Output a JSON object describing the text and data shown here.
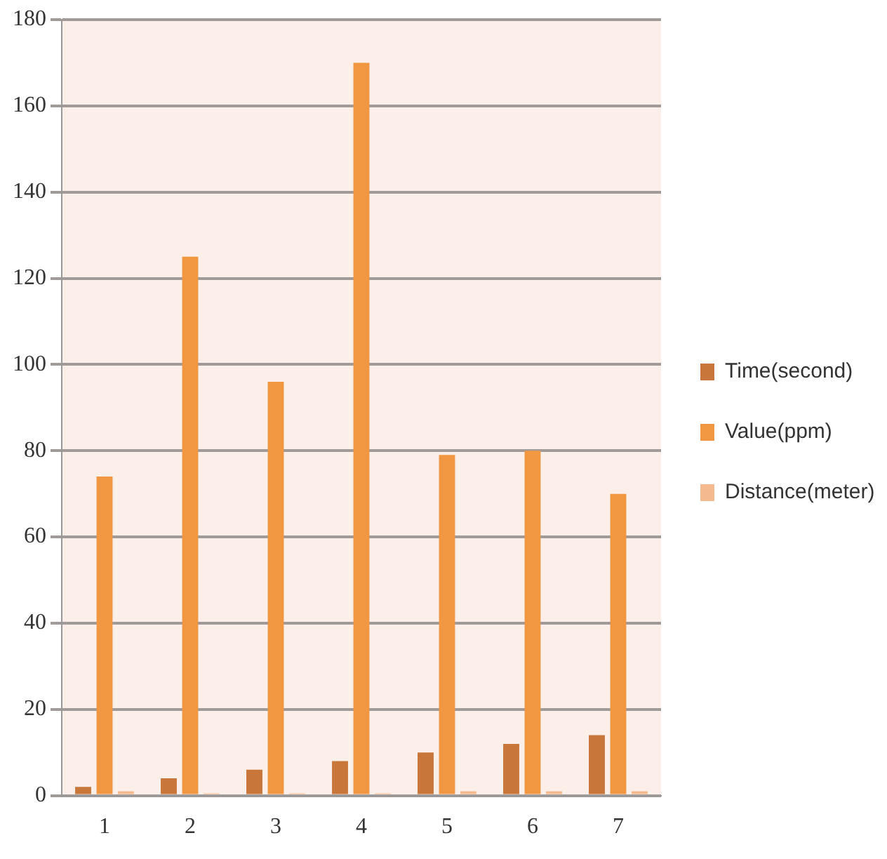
{
  "chart_data": {
    "type": "bar",
    "categories": [
      "1",
      "2",
      "3",
      "4",
      "5",
      "6",
      "7"
    ],
    "series": [
      {
        "name": "Time(second)",
        "color": "#c8763a",
        "values": [
          2,
          4,
          6,
          8,
          10,
          12,
          14
        ]
      },
      {
        "name": "Value(ppm)",
        "color": "#f29741",
        "values": [
          74,
          125,
          96,
          170,
          79,
          80,
          70
        ]
      },
      {
        "name": "Distance(meter)",
        "color": "#f4b98c",
        "values": [
          1,
          0.5,
          0.5,
          0.5,
          1,
          1,
          1
        ]
      }
    ],
    "ylim": [
      0,
      180
    ],
    "yticks": [
      0,
      20,
      40,
      60,
      80,
      100,
      120,
      140,
      160,
      180
    ],
    "grid": "y",
    "legend": "right"
  }
}
